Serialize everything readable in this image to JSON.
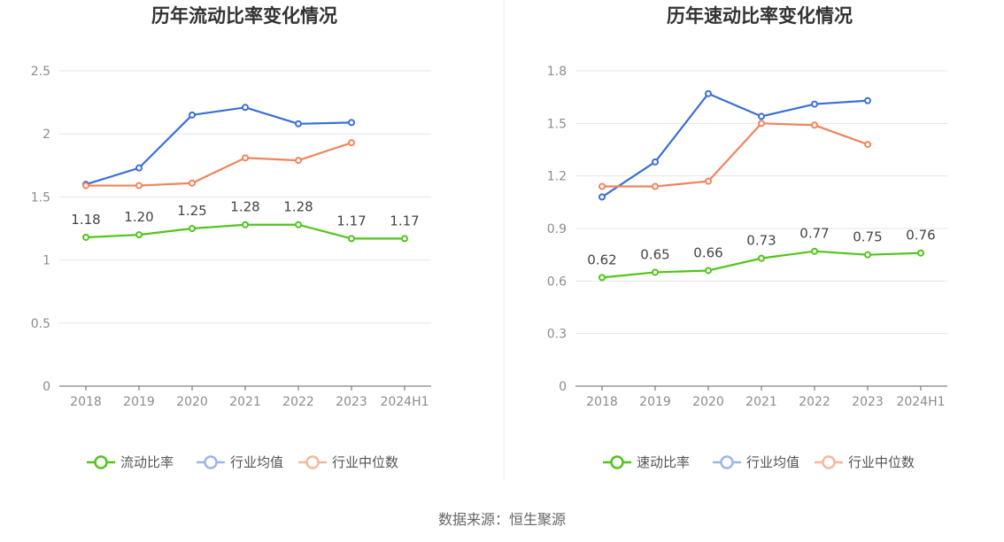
{
  "source": "数据来源：恒生聚源",
  "chart_data": [
    {
      "type": "line",
      "title": "历年流动比率变化情况",
      "categories": [
        "2018",
        "2019",
        "2020",
        "2021",
        "2022",
        "2023",
        "2024H1"
      ],
      "ylim": [
        0,
        2.5
      ],
      "yticks": [
        "0",
        "0.5",
        "1",
        "1.5",
        "2",
        "2.5"
      ],
      "grid": true,
      "legend_position": "bottom",
      "series": [
        {
          "name": "流动比率",
          "color": "#52c41a",
          "labeled": true,
          "values": [
            1.18,
            1.2,
            1.25,
            1.28,
            1.28,
            1.17,
            1.17
          ],
          "labels": [
            "1.18",
            "1.20",
            "1.25",
            "1.28",
            "1.28",
            "1.17",
            "1.17"
          ]
        },
        {
          "name": "行业均值",
          "color": "#3a6fd8",
          "labeled": false,
          "values": [
            1.6,
            1.73,
            2.15,
            2.21,
            2.08,
            2.09,
            null
          ]
        },
        {
          "name": "行业中位数",
          "color": "#f0845c",
          "labeled": false,
          "values": [
            1.59,
            1.59,
            1.61,
            1.81,
            1.79,
            1.93,
            null
          ]
        }
      ]
    },
    {
      "type": "line",
      "title": "历年速动比率变化情况",
      "categories": [
        "2018",
        "2019",
        "2020",
        "2021",
        "2022",
        "2023",
        "2024H1"
      ],
      "ylim": [
        0,
        1.8
      ],
      "yticks": [
        "0",
        "0.3",
        "0.6",
        "0.9",
        "1.2",
        "1.5",
        "1.8"
      ],
      "grid": true,
      "legend_position": "bottom",
      "series": [
        {
          "name": "速动比率",
          "color": "#52c41a",
          "labeled": true,
          "values": [
            0.62,
            0.65,
            0.66,
            0.73,
            0.77,
            0.75,
            0.76
          ],
          "labels": [
            "0.62",
            "0.65",
            "0.66",
            "0.73",
            "0.77",
            "0.75",
            "0.76"
          ]
        },
        {
          "name": "行业均值",
          "color": "#3a6fd8",
          "labeled": false,
          "values": [
            1.08,
            1.28,
            1.67,
            1.54,
            1.61,
            1.63,
            null
          ]
        },
        {
          "name": "行业中位数",
          "color": "#f0845c",
          "labeled": false,
          "values": [
            1.14,
            1.14,
            1.17,
            1.5,
            1.49,
            1.38,
            null
          ]
        }
      ]
    }
  ]
}
